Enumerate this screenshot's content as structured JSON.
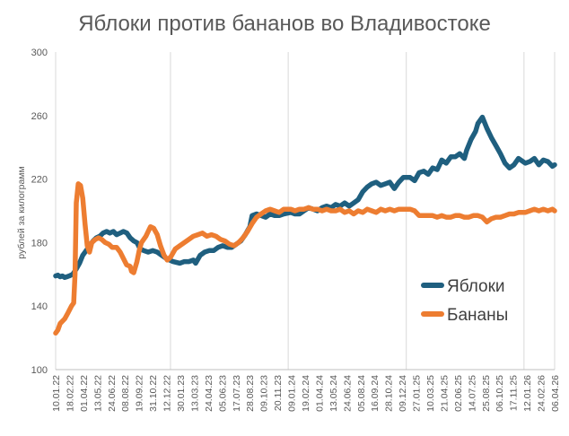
{
  "chart_data": {
    "type": "line",
    "title": "Яблоки против бананов во Владивостоке",
    "ylabel": "рублей за килограмм",
    "xlabel": "",
    "ylim": [
      100,
      300
    ],
    "yticks": [
      100,
      140,
      180,
      220,
      260,
      300
    ],
    "xlim": [
      "2022-01-10",
      "2026-04-06"
    ],
    "x_tick_labels": [
      "10.01.22",
      "18.02.22",
      "01.04.22",
      "13.05.22",
      "24.06.22",
      "08.08.22",
      "19.09.22",
      "31.10.22",
      "12.12.22",
      "30.01.23",
      "13.03.23",
      "24.04.23",
      "05.06.23",
      "17.07.23",
      "28.08.23",
      "09.10.23",
      "20.11.23",
      "09.01.24",
      "19.02.24",
      "01.04.24",
      "13.05.24",
      "24.06.24",
      "05.08.24",
      "16.09.24",
      "28.10.24",
      "09.12.24",
      "27.01.25",
      "10.03.25",
      "21.04.25",
      "02.06.25",
      "14.07.25",
      "25.08.25",
      "06.10.25",
      "17.11.25",
      "12.01.26",
      "24.02.26",
      "06.04.26"
    ],
    "grid": {
      "vertical_major": true,
      "horizontal": false
    },
    "legend_position": "center-right",
    "series": [
      {
        "name": "Яблоки",
        "color": "#1F5F7F",
        "points": [
          [
            "2022-01-10",
            159
          ],
          [
            "2022-01-17",
            159.5
          ],
          [
            "2022-01-24",
            158.5
          ],
          [
            "2022-01-31",
            159
          ],
          [
            "2022-02-07",
            158
          ],
          [
            "2022-02-14",
            158.5
          ],
          [
            "2022-02-21",
            159
          ],
          [
            "2022-03-04",
            160
          ],
          [
            "2022-03-14",
            163
          ],
          [
            "2022-03-25",
            167
          ],
          [
            "2022-04-04",
            172
          ],
          [
            "2022-04-15",
            175
          ],
          [
            "2022-04-25",
            178
          ],
          [
            "2022-05-06",
            181
          ],
          [
            "2022-05-16",
            183
          ],
          [
            "2022-05-27",
            184
          ],
          [
            "2022-06-06",
            186
          ],
          [
            "2022-06-17",
            187
          ],
          [
            "2022-06-27",
            186
          ],
          [
            "2022-07-08",
            187
          ],
          [
            "2022-07-18",
            185
          ],
          [
            "2022-07-29",
            186
          ],
          [
            "2022-08-08",
            187
          ],
          [
            "2022-08-19",
            186
          ],
          [
            "2022-08-29",
            183
          ],
          [
            "2022-09-09",
            181
          ],
          [
            "2022-09-19",
            180
          ],
          [
            "2022-09-29",
            176
          ],
          [
            "2022-10-10",
            175
          ],
          [
            "2022-10-24",
            174
          ],
          [
            "2022-11-07",
            175
          ],
          [
            "2022-11-21",
            174
          ],
          [
            "2022-12-05",
            172
          ],
          [
            "2022-12-19",
            170
          ],
          [
            "2023-01-09",
            168
          ],
          [
            "2023-01-30",
            167
          ],
          [
            "2023-02-13",
            168
          ],
          [
            "2023-02-27",
            168
          ],
          [
            "2023-03-13",
            169
          ],
          [
            "2023-03-20",
            167
          ],
          [
            "2023-04-03",
            172
          ],
          [
            "2023-04-17",
            174
          ],
          [
            "2023-05-01",
            175
          ],
          [
            "2023-05-15",
            175
          ],
          [
            "2023-05-29",
            177
          ],
          [
            "2023-06-12",
            178
          ],
          [
            "2023-06-26",
            177
          ],
          [
            "2023-07-10",
            177
          ],
          [
            "2023-07-24",
            179
          ],
          [
            "2023-08-07",
            181
          ],
          [
            "2023-08-21",
            185
          ],
          [
            "2023-09-04",
            190
          ],
          [
            "2023-09-11",
            197
          ],
          [
            "2023-09-25",
            198
          ],
          [
            "2023-10-09",
            197
          ],
          [
            "2023-10-23",
            196
          ],
          [
            "2023-11-06",
            198
          ],
          [
            "2023-11-20",
            197
          ],
          [
            "2023-12-04",
            197
          ],
          [
            "2023-12-18",
            198
          ],
          [
            "2024-01-09",
            199
          ],
          [
            "2024-01-22",
            198
          ],
          [
            "2024-02-05",
            198
          ],
          [
            "2024-02-19",
            200
          ],
          [
            "2024-03-04",
            202
          ],
          [
            "2024-03-18",
            201
          ],
          [
            "2024-04-01",
            200
          ],
          [
            "2024-04-15",
            202
          ],
          [
            "2024-04-29",
            203
          ],
          [
            "2024-05-13",
            202
          ],
          [
            "2024-05-27",
            204
          ],
          [
            "2024-06-10",
            203
          ],
          [
            "2024-06-24",
            205
          ],
          [
            "2024-07-08",
            203
          ],
          [
            "2024-07-22",
            205
          ],
          [
            "2024-08-05",
            207
          ],
          [
            "2024-08-19",
            212
          ],
          [
            "2024-09-02",
            215
          ],
          [
            "2024-09-16",
            217
          ],
          [
            "2024-09-30",
            218
          ],
          [
            "2024-10-14",
            216
          ],
          [
            "2024-10-28",
            217
          ],
          [
            "2024-11-11",
            218
          ],
          [
            "2024-11-25",
            214
          ],
          [
            "2024-12-09",
            218
          ],
          [
            "2024-12-23",
            221
          ],
          [
            "2025-01-13",
            221
          ],
          [
            "2025-01-27",
            219
          ],
          [
            "2025-02-10",
            224
          ],
          [
            "2025-02-24",
            225
          ],
          [
            "2025-03-10",
            223
          ],
          [
            "2025-03-24",
            227
          ],
          [
            "2025-04-07",
            226
          ],
          [
            "2025-04-21",
            232
          ],
          [
            "2025-05-05",
            230
          ],
          [
            "2025-05-19",
            234
          ],
          [
            "2025-06-02",
            234
          ],
          [
            "2025-06-16",
            236
          ],
          [
            "2025-06-30",
            233
          ],
          [
            "2025-07-07",
            238
          ],
          [
            "2025-07-21",
            245
          ],
          [
            "2025-08-04",
            250
          ],
          [
            "2025-08-11",
            255
          ],
          [
            "2025-08-25",
            259
          ],
          [
            "2025-09-08",
            252
          ],
          [
            "2025-09-22",
            246
          ],
          [
            "2025-10-06",
            241
          ],
          [
            "2025-10-20",
            236
          ],
          [
            "2025-11-03",
            230
          ],
          [
            "2025-11-17",
            227
          ],
          [
            "2025-12-01",
            229
          ],
          [
            "2025-12-15",
            233
          ],
          [
            "2026-01-05",
            230
          ],
          [
            "2026-01-19",
            231
          ],
          [
            "2026-02-02",
            233
          ],
          [
            "2026-02-16",
            229
          ],
          [
            "2026-03-02",
            232
          ],
          [
            "2026-03-16",
            231
          ],
          [
            "2026-03-30",
            228
          ],
          [
            "2026-04-06",
            229
          ]
        ]
      },
      {
        "name": "Бананы",
        "color": "#ED7D31",
        "points": [
          [
            "2022-01-10",
            123
          ],
          [
            "2022-01-17",
            125
          ],
          [
            "2022-01-24",
            129
          ],
          [
            "2022-02-07",
            132
          ],
          [
            "2022-02-18",
            136
          ],
          [
            "2022-02-28",
            140
          ],
          [
            "2022-03-07",
            142
          ],
          [
            "2022-03-11",
            160
          ],
          [
            "2022-03-15",
            205
          ],
          [
            "2022-03-21",
            217
          ],
          [
            "2022-03-28",
            216
          ],
          [
            "2022-04-04",
            208
          ],
          [
            "2022-04-11",
            192
          ],
          [
            "2022-04-18",
            178
          ],
          [
            "2022-04-25",
            174
          ],
          [
            "2022-05-02",
            180
          ],
          [
            "2022-05-13",
            182
          ],
          [
            "2022-05-23",
            183
          ],
          [
            "2022-06-02",
            182
          ],
          [
            "2022-06-13",
            180
          ],
          [
            "2022-06-24",
            179
          ],
          [
            "2022-07-04",
            177
          ],
          [
            "2022-07-18",
            177
          ],
          [
            "2022-07-29",
            174
          ],
          [
            "2022-08-08",
            170
          ],
          [
            "2022-08-18",
            166
          ],
          [
            "2022-08-29",
            165
          ],
          [
            "2022-09-02",
            162
          ],
          [
            "2022-09-09",
            161
          ],
          [
            "2022-09-19",
            168
          ],
          [
            "2022-09-26",
            175
          ],
          [
            "2022-10-03",
            180
          ],
          [
            "2022-10-17",
            184
          ],
          [
            "2022-10-24",
            187
          ],
          [
            "2022-10-31",
            190
          ],
          [
            "2022-11-10",
            189
          ],
          [
            "2022-11-21",
            185
          ],
          [
            "2022-12-01",
            178
          ],
          [
            "2022-12-12",
            172
          ],
          [
            "2022-12-22",
            169
          ],
          [
            "2023-01-02",
            171
          ],
          [
            "2023-01-16",
            176
          ],
          [
            "2023-01-30",
            178
          ],
          [
            "2023-02-13",
            180
          ],
          [
            "2023-02-27",
            182
          ],
          [
            "2023-03-13",
            184
          ],
          [
            "2023-03-27",
            185
          ],
          [
            "2023-04-10",
            186
          ],
          [
            "2023-04-24",
            184
          ],
          [
            "2023-05-08",
            185
          ],
          [
            "2023-05-22",
            184
          ],
          [
            "2023-06-05",
            182
          ],
          [
            "2023-06-19",
            181
          ],
          [
            "2023-07-03",
            179
          ],
          [
            "2023-07-17",
            178
          ],
          [
            "2023-07-31",
            180
          ],
          [
            "2023-08-14",
            183
          ],
          [
            "2023-08-28",
            187
          ],
          [
            "2023-09-11",
            192
          ],
          [
            "2023-09-25",
            196
          ],
          [
            "2023-10-09",
            198
          ],
          [
            "2023-10-23",
            200
          ],
          [
            "2023-11-06",
            201
          ],
          [
            "2023-11-20",
            200
          ],
          [
            "2023-12-04",
            199
          ],
          [
            "2023-12-18",
            201
          ],
          [
            "2024-01-09",
            201
          ],
          [
            "2024-01-22",
            200
          ],
          [
            "2024-02-05",
            201
          ],
          [
            "2024-02-19",
            201
          ],
          [
            "2024-03-04",
            202
          ],
          [
            "2024-03-18",
            201
          ],
          [
            "2024-04-01",
            201
          ],
          [
            "2024-04-15",
            200
          ],
          [
            "2024-04-29",
            201
          ],
          [
            "2024-05-13",
            200
          ],
          [
            "2024-05-27",
            200
          ],
          [
            "2024-06-10",
            201
          ],
          [
            "2024-06-24",
            199
          ],
          [
            "2024-07-08",
            200
          ],
          [
            "2024-07-22",
            198
          ],
          [
            "2024-08-05",
            200
          ],
          [
            "2024-08-19",
            199
          ],
          [
            "2024-09-02",
            201
          ],
          [
            "2024-09-16",
            200
          ],
          [
            "2024-09-30",
            199
          ],
          [
            "2024-10-14",
            201
          ],
          [
            "2024-10-28",
            200
          ],
          [
            "2024-11-11",
            201
          ],
          [
            "2024-11-25",
            200
          ],
          [
            "2024-12-09",
            201
          ],
          [
            "2024-12-23",
            201
          ],
          [
            "2025-01-13",
            201
          ],
          [
            "2025-01-27",
            200
          ],
          [
            "2025-02-10",
            197
          ],
          [
            "2025-02-24",
            197
          ],
          [
            "2025-03-10",
            197
          ],
          [
            "2025-03-24",
            197
          ],
          [
            "2025-04-07",
            196
          ],
          [
            "2025-04-21",
            197
          ],
          [
            "2025-05-05",
            196
          ],
          [
            "2025-05-19",
            196
          ],
          [
            "2025-06-02",
            197
          ],
          [
            "2025-06-16",
            197
          ],
          [
            "2025-06-30",
            196
          ],
          [
            "2025-07-14",
            196
          ],
          [
            "2025-07-28",
            197
          ],
          [
            "2025-08-11",
            197
          ],
          [
            "2025-08-25",
            196
          ],
          [
            "2025-09-08",
            193
          ],
          [
            "2025-09-22",
            195
          ],
          [
            "2025-10-06",
            196
          ],
          [
            "2025-10-20",
            196
          ],
          [
            "2025-11-03",
            197
          ],
          [
            "2025-11-17",
            198
          ],
          [
            "2025-12-01",
            198
          ],
          [
            "2025-12-15",
            199
          ],
          [
            "2026-01-05",
            199
          ],
          [
            "2026-01-19",
            200
          ],
          [
            "2026-02-02",
            201
          ],
          [
            "2026-02-16",
            200
          ],
          [
            "2026-03-02",
            201
          ],
          [
            "2026-03-16",
            200
          ],
          [
            "2026-03-30",
            201
          ],
          [
            "2026-04-06",
            200
          ]
        ]
      }
    ]
  }
}
